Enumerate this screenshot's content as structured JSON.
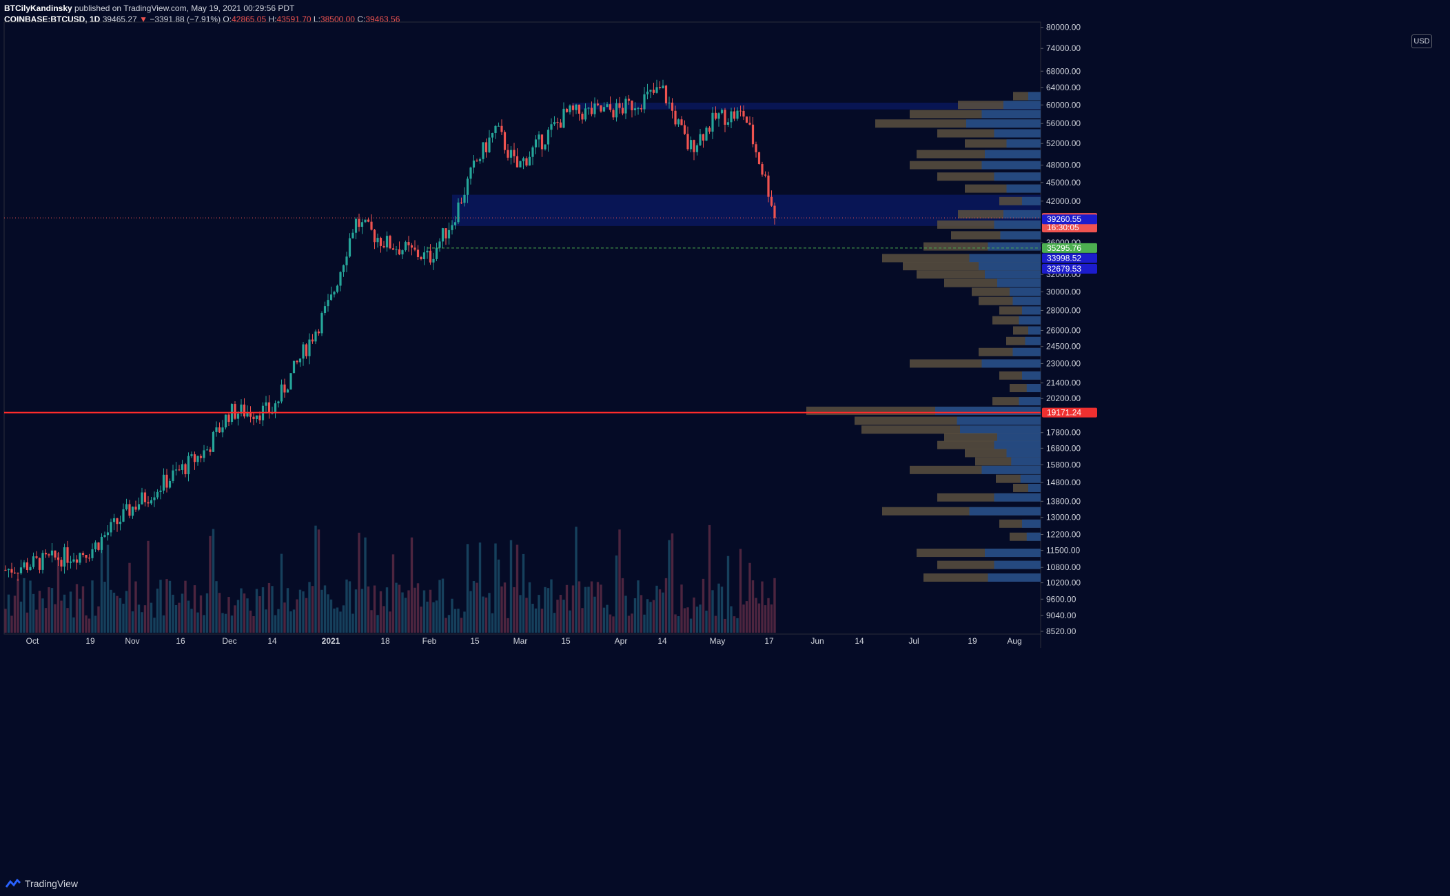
{
  "header": {
    "author": "BTCilyKandinsky",
    "published": "published on TradingView.com, May 19, 2021 00:29:56 PDT",
    "symbol": "COINBASE:BTCUSD, 1D",
    "last": "39465.27",
    "change": "−3391.88 (−7.91%)",
    "o_label": "O:",
    "o_value": "42865.05",
    "h_label": "H:",
    "h_value": "43591.70",
    "l_label": "L:",
    "l_value": "38500.00",
    "c_label": "C:",
    "c_value": "39463.56"
  },
  "currency_button": "USD",
  "footer": {
    "brand": "TradingView"
  },
  "colors": {
    "background": "#050b26",
    "up": "#26a69a",
    "down": "#ef5350",
    "support_line": "#ff2b2b",
    "zone": "#0a1a66",
    "volume_profile_up": "#1e4a8c",
    "volume_profile_down": "#5a5040"
  },
  "chart_data": {
    "type": "candlestick",
    "scale": "log",
    "y_ticks": [
      "80000.00",
      "74000.00",
      "68000.00",
      "64000.00",
      "60000.00",
      "56000.00",
      "52000.00",
      "48000.00",
      "45000.00",
      "42000.00",
      "36000.00",
      "32000.00",
      "30000.00",
      "28000.00",
      "26000.00",
      "24500.00",
      "23000.00",
      "21400.00",
      "20200.00",
      "17800.00",
      "16800.00",
      "15800.00",
      "14800.00",
      "13800.00",
      "13000.00",
      "12200.00",
      "11500.00",
      "10800.00",
      "10200.00",
      "9600.00",
      "9040.00",
      "8520.00"
    ],
    "x_ticks": [
      "Oct",
      "19",
      "Nov",
      "16",
      "Dec",
      "14",
      "2021",
      "18",
      "Feb",
      "15",
      "Mar",
      "15",
      "Apr",
      "14",
      "May",
      "17",
      "Jun",
      "14",
      "Jul",
      "19",
      "Aug"
    ],
    "price_badges": [
      {
        "label": "39463.56",
        "sub": "16:30:05",
        "kind": "last"
      },
      {
        "label": "39260.55",
        "kind": "blue"
      },
      {
        "label": "35295.76",
        "kind": "green"
      },
      {
        "label": "33998.52",
        "kind": "blue"
      },
      {
        "label": "32679.53",
        "kind": "blue"
      },
      {
        "label": "19171.24",
        "kind": "red"
      }
    ],
    "levels": {
      "support_line": 19171.24,
      "zone_top": 43000,
      "zone_bottom": 38300,
      "green_dashed": 35295.76
    },
    "close_path": [
      [
        "Oct",
        10700
      ],
      [
        "19",
        11500
      ],
      [
        "Nov",
        13500
      ],
      [
        "16",
        16700
      ],
      [
        "Dec",
        19200
      ],
      [
        "14",
        19300
      ],
      [
        "2021",
        29000
      ],
      [
        "2021b",
        39000
      ],
      [
        "18",
        36000
      ],
      [
        "Feb",
        34000
      ],
      [
        "Feb7",
        39000
      ],
      [
        "15",
        48000
      ],
      [
        "Feb22",
        55000
      ],
      [
        "Mar",
        47500
      ],
      [
        "15",
        58000
      ],
      [
        "Apr",
        59000
      ],
      [
        "14",
        63500
      ],
      [
        "Apr22",
        51000
      ],
      [
        "May",
        57500
      ],
      [
        "May10",
        58000
      ],
      [
        "17",
        43500
      ],
      [
        "May19",
        39463
      ]
    ]
  }
}
